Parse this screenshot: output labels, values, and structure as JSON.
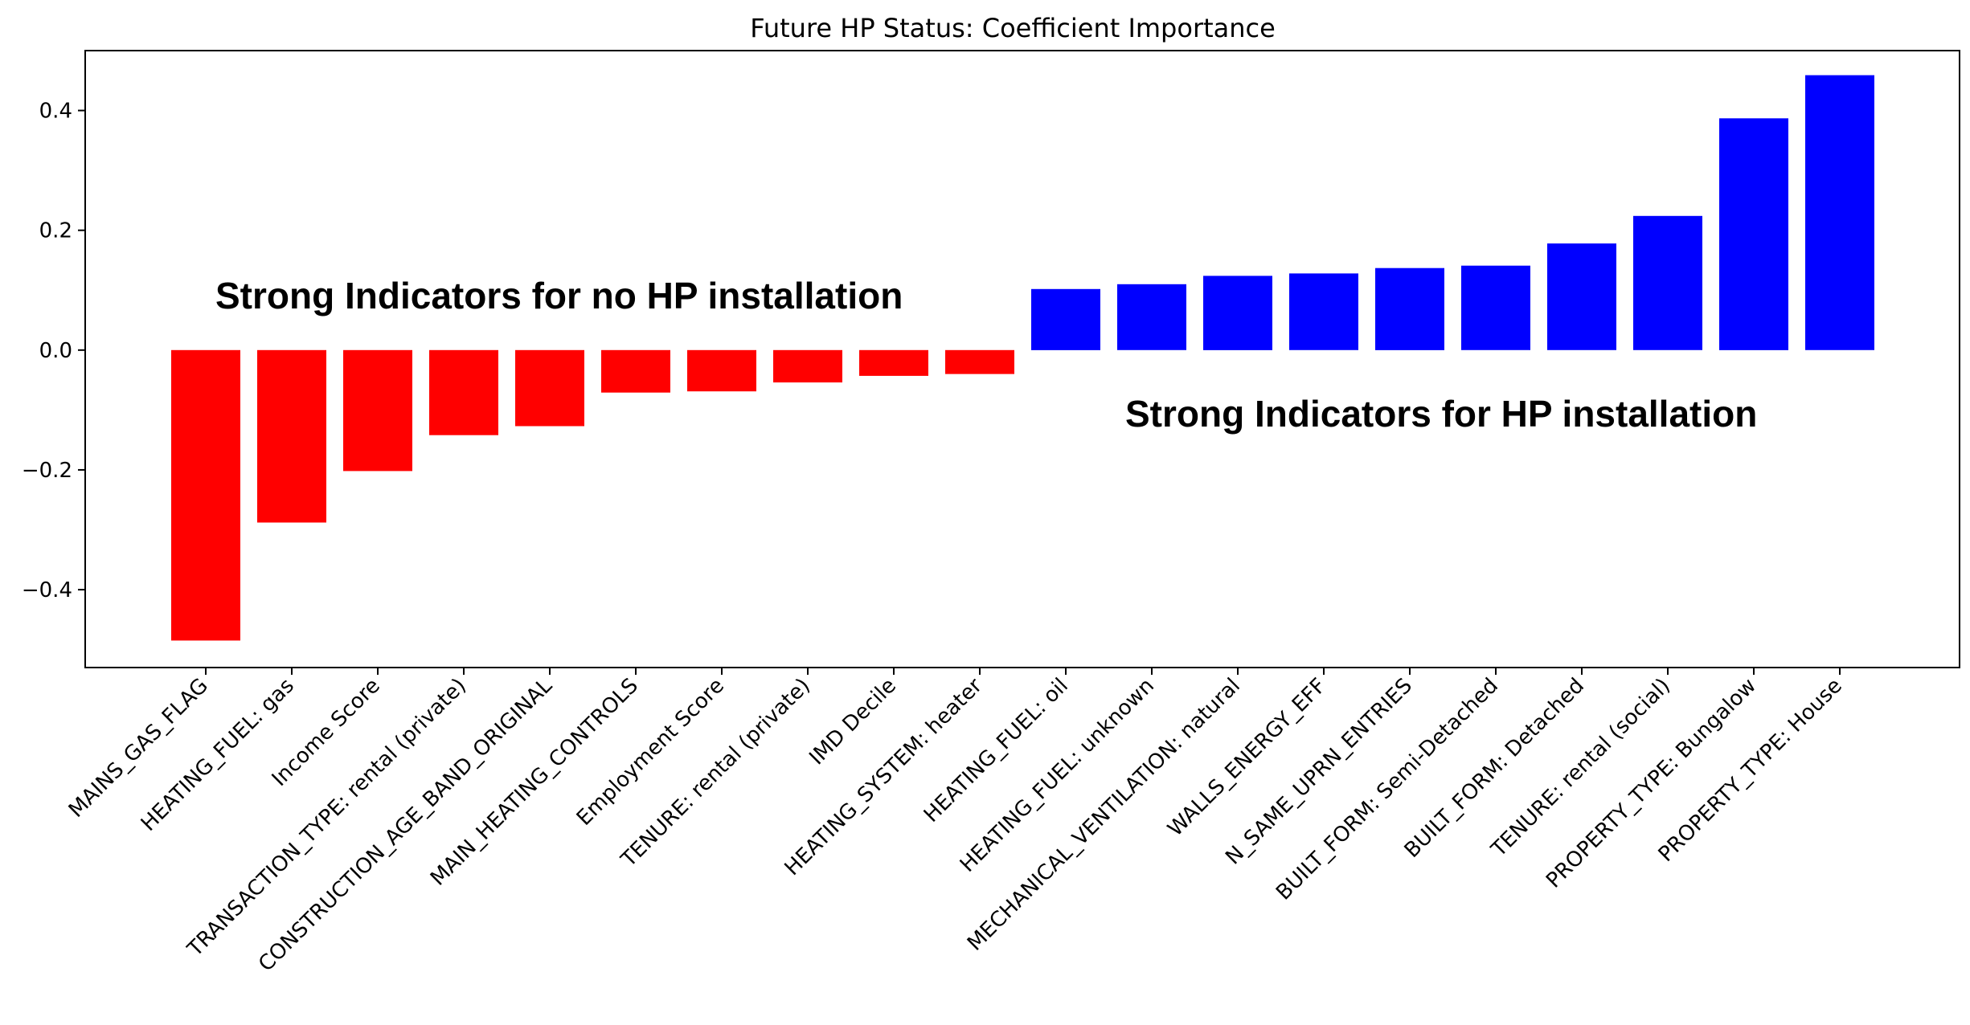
{
  "chart_data": {
    "type": "bar",
    "title": "Future HP Status: Coefficient Importance",
    "xlabel": "",
    "ylabel": "",
    "ylim": [
      -0.53,
      0.5
    ],
    "yticks": [
      -0.4,
      -0.2,
      0.0,
      0.2,
      0.4
    ],
    "ytick_labels": [
      "−0.4",
      "−0.2",
      "0.0",
      "0.2",
      "0.4"
    ],
    "grid": false,
    "categories": [
      "MAINS_GAS_FLAG",
      "HEATING_FUEL: gas",
      "Income Score",
      "TRANSACTION_TYPE: rental (private)",
      "CONSTRUCTION_AGE_BAND_ORIGINAL",
      "MAIN_HEATING_CONTROLS",
      "Employment Score",
      "TENURE: rental (private)",
      "IMD Decile",
      "HEATING_SYSTEM: heater",
      "HEATING_FUEL: oil",
      "HEATING_FUEL: unknown",
      "MECHANICAL_VENTILATION: natural",
      "WALLS_ENERGY_EFF",
      "N_SAME_UPRN_ENTRIES",
      "BUILT_FORM: Semi-Detached",
      "BUILT_FORM: Detached",
      "TENURE: rental (social)",
      "PROPERTY_TYPE: Bungalow",
      "PROPERTY_TYPE: House"
    ],
    "values": [
      -0.485,
      -0.288,
      -0.202,
      -0.142,
      -0.127,
      -0.071,
      -0.069,
      -0.054,
      -0.043,
      -0.04,
      0.102,
      0.11,
      0.124,
      0.128,
      0.137,
      0.141,
      0.178,
      0.224,
      0.387,
      0.459
    ],
    "colors": {
      "negative": "#ff0000",
      "positive": "#0000ff"
    },
    "annotations": [
      {
        "text": "Strong Indicators for no HP installation",
        "color": "#e03a12"
      },
      {
        "text": "Strong Indicators for HP installation",
        "color": "#0a4fd6"
      }
    ]
  }
}
